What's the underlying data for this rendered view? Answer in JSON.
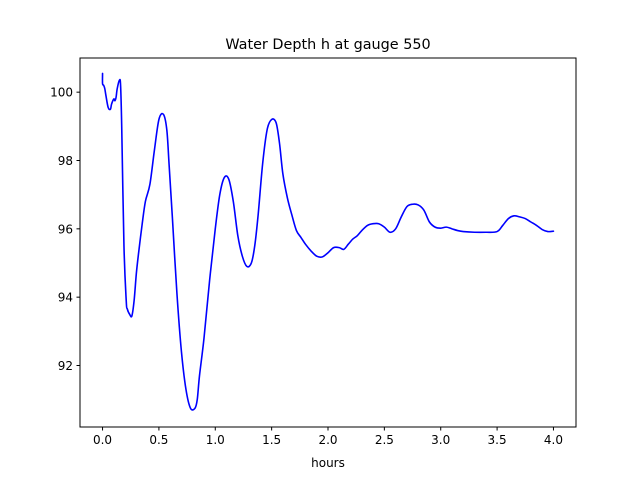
{
  "chart_data": {
    "type": "line",
    "title": "Water Depth h at gauge 550",
    "xlabel": "hours",
    "ylabel": "",
    "xlim": [
      -0.2,
      4.2
    ],
    "ylim": [
      90.2,
      101.0
    ],
    "grid": false,
    "xticks": [
      0.0,
      0.5,
      1.0,
      1.5,
      2.0,
      2.5,
      3.0,
      3.5,
      4.0
    ],
    "xtick_labels": [
      "0.0",
      "0.5",
      "1.0",
      "1.5",
      "2.0",
      "2.5",
      "3.0",
      "3.5",
      "4.0"
    ],
    "yticks": [
      92,
      94,
      96,
      98,
      100
    ],
    "ytick_labels": [
      "92",
      "94",
      "96",
      "98",
      "100"
    ],
    "series": [
      {
        "color": "#0000ff",
        "x": [
          0.0,
          0.0,
          0.01,
          0.02,
          0.03,
          0.05,
          0.07,
          0.08,
          0.1,
          0.11,
          0.12,
          0.13,
          0.15,
          0.16,
          0.17,
          0.19,
          0.21,
          0.22,
          0.24,
          0.26,
          0.28,
          0.3,
          0.32,
          0.35,
          0.38,
          0.42,
          0.46,
          0.5,
          0.54,
          0.57,
          0.59,
          0.62,
          0.66,
          0.7,
          0.74,
          0.78,
          0.82,
          0.84,
          0.86,
          0.9,
          0.95,
          1.0,
          1.04,
          1.08,
          1.12,
          1.16,
          1.2,
          1.24,
          1.28,
          1.32,
          1.35,
          1.38,
          1.42,
          1.46,
          1.5,
          1.54,
          1.57,
          1.6,
          1.64,
          1.68,
          1.72,
          1.76,
          1.8,
          1.85,
          1.9,
          1.95,
          2.0,
          2.05,
          2.1,
          2.14,
          2.18,
          2.22,
          2.26,
          2.3,
          2.35,
          2.4,
          2.45,
          2.5,
          2.55,
          2.6,
          2.65,
          2.7,
          2.75,
          2.8,
          2.85,
          2.9,
          2.95,
          3.0,
          3.05,
          3.1,
          3.15,
          3.2,
          3.3,
          3.4,
          3.5,
          3.55,
          3.6,
          3.65,
          3.7,
          3.75,
          3.8,
          3.85,
          3.9,
          3.95,
          4.0
        ],
        "y": [
          100.55,
          100.25,
          100.2,
          100.1,
          99.9,
          99.55,
          99.5,
          99.65,
          99.8,
          99.75,
          99.85,
          100.1,
          100.35,
          100.2,
          99.0,
          95.5,
          93.9,
          93.65,
          93.5,
          93.45,
          93.9,
          94.7,
          95.3,
          96.1,
          96.8,
          97.3,
          98.3,
          99.2,
          99.35,
          98.9,
          97.9,
          96.3,
          94.1,
          92.4,
          91.3,
          90.75,
          90.75,
          91.0,
          91.7,
          92.8,
          94.5,
          96.0,
          97.0,
          97.5,
          97.45,
          96.8,
          95.8,
          95.2,
          94.9,
          95.0,
          95.5,
          96.4,
          97.9,
          98.9,
          99.2,
          99.1,
          98.5,
          97.6,
          96.9,
          96.4,
          95.95,
          95.75,
          95.55,
          95.35,
          95.2,
          95.18,
          95.3,
          95.45,
          95.45,
          95.4,
          95.55,
          95.7,
          95.8,
          95.95,
          96.1,
          96.15,
          96.15,
          96.05,
          95.9,
          96.0,
          96.35,
          96.65,
          96.72,
          96.7,
          96.55,
          96.2,
          96.05,
          96.02,
          96.05,
          96.0,
          95.95,
          95.92,
          95.9,
          95.9,
          95.92,
          96.1,
          96.3,
          96.38,
          96.35,
          96.3,
          96.2,
          96.1,
          95.98,
          95.92,
          95.93
        ]
      }
    ]
  }
}
